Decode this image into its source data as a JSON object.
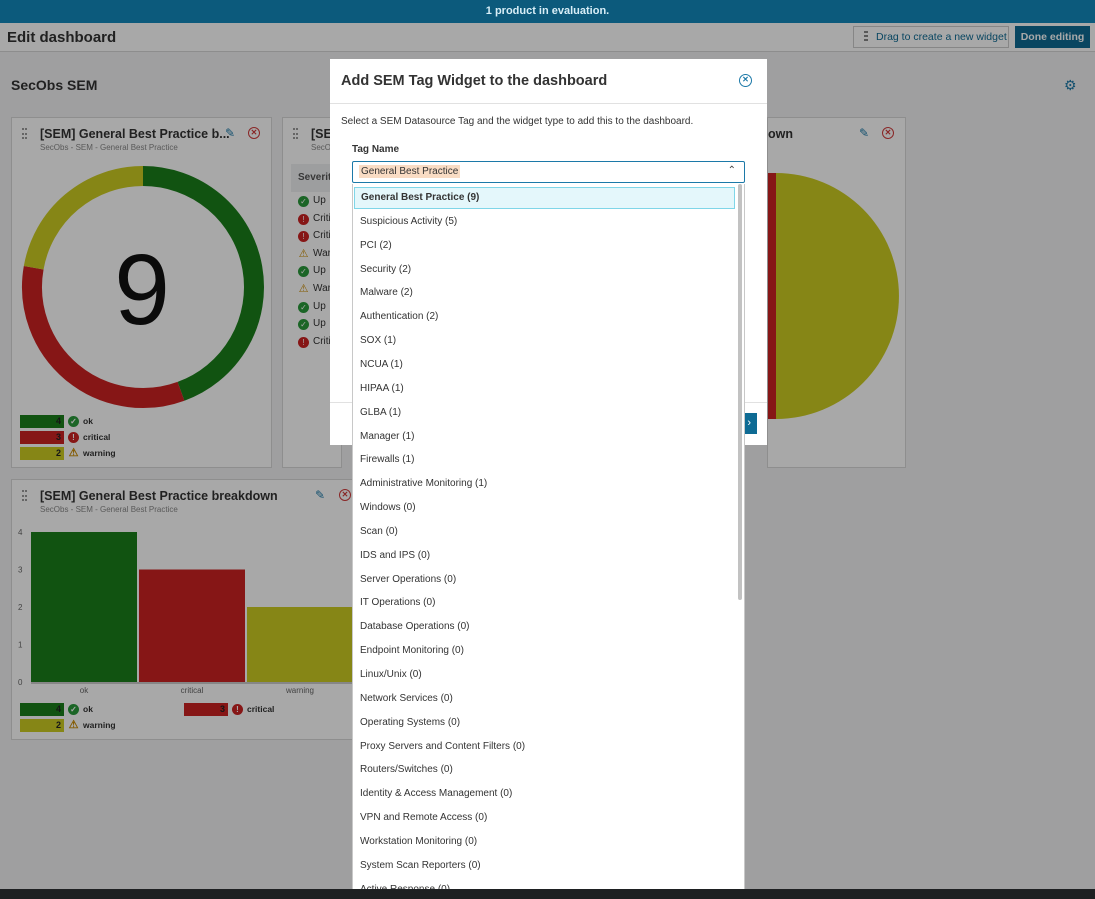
{
  "banner": {
    "text": "1 product in evaluation."
  },
  "header": {
    "title": "Edit dashboard",
    "drag_label": "Drag to create a new widget",
    "done_label": "Done editing"
  },
  "section": {
    "title": "SecObs SEM"
  },
  "widgets": {
    "donut": {
      "title": "[SEM] General Best Practice b...",
      "subtitle": "SecObs - SEM - General Best Practice",
      "center_value": "9",
      "chart_data": {
        "type": "pie",
        "categories": [
          "ok",
          "critical",
          "warning"
        ],
        "values": [
          4,
          3,
          2
        ]
      },
      "legend": [
        {
          "count": "4",
          "label": "ok",
          "color": "#1a7f1a"
        },
        {
          "count": "3",
          "label": "critical",
          "color": "#cc2222"
        },
        {
          "count": "2",
          "label": "warning",
          "color": "#cccc22"
        }
      ]
    },
    "table": {
      "title": "[SE",
      "subtitle": "SecO",
      "header": "Severit",
      "rows": [
        {
          "status": "ok",
          "label": "Up"
        },
        {
          "status": "critical",
          "label": "Criti"
        },
        {
          "status": "critical",
          "label": "Criti"
        },
        {
          "status": "warning",
          "label": "War"
        },
        {
          "status": "ok",
          "label": "Up"
        },
        {
          "status": "warning",
          "label": "War"
        },
        {
          "status": "ok",
          "label": "Up"
        },
        {
          "status": "ok",
          "label": "Up"
        },
        {
          "status": "critical",
          "label": "Criti"
        }
      ]
    },
    "pie": {
      "title_tail": "own"
    },
    "bar": {
      "title": "[SEM] General Best Practice breakdown",
      "subtitle": "SecObs - SEM - General Best Practice",
      "chart_data": {
        "type": "bar",
        "categories": [
          "ok",
          "critical",
          "warning"
        ],
        "values": [
          4,
          3,
          2
        ],
        "ylim": [
          0,
          4
        ],
        "yticks": [
          "0",
          "1",
          "2",
          "3",
          "4"
        ],
        "colors": [
          "#1a7f1a",
          "#cc2222",
          "#cccc22"
        ]
      },
      "legend": [
        {
          "count": "4",
          "label": "ok"
        },
        {
          "count": "3",
          "label": "critical"
        },
        {
          "count": "2",
          "label": "warning"
        }
      ]
    }
  },
  "modal": {
    "title": "Add SEM Tag Widget to the dashboard",
    "description": "Select a SEM Datasource Tag and the widget type to add this to the dashboard.",
    "field_label": "Tag Name",
    "selected": "General Best Practice",
    "options": [
      "General Best Practice (9)",
      "Suspicious Activity (5)",
      "PCI (2)",
      "Security (2)",
      "Malware (2)",
      "Authentication (2)",
      "SOX (1)",
      "NCUA (1)",
      "HIPAA (1)",
      "GLBA (1)",
      "Manager (1)",
      "Firewalls (1)",
      "Administrative Monitoring (1)",
      "Windows (0)",
      "Scan (0)",
      "IDS and IPS (0)",
      "Server Operations (0)",
      "IT Operations (0)",
      "Database Operations (0)",
      "Endpoint Monitoring (0)",
      "Linux/Unix (0)",
      "Network Services (0)",
      "Operating Systems (0)",
      "Proxy Servers and Content Filters (0)",
      "Routers/Switches (0)",
      "Identity & Access Management (0)",
      "VPN and Remote Access (0)",
      "Workstation Monitoring (0)",
      "System Scan Reporters (0)",
      "Active Response (0)"
    ]
  },
  "colors": {
    "ok": "#1a7f1a",
    "critical": "#cc2222",
    "warning": "#cccc22",
    "accent": "#0e6b94"
  }
}
